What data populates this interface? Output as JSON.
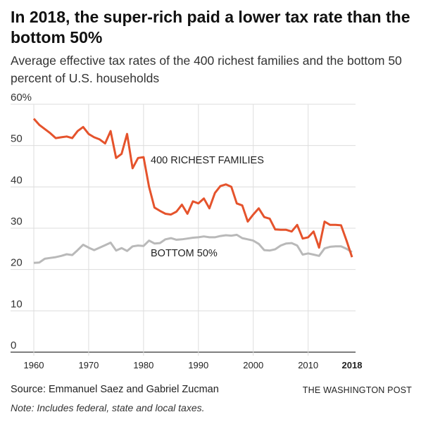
{
  "chart_data": {
    "type": "line",
    "title": "In 2018, the super-rich paid a lower tax rate than the bottom 50%",
    "subtitle": "Average effective tax rates of the 400 richest families and the bottom 50 percent of U.S. households",
    "xlabel": "",
    "ylabel": "",
    "xlim": [
      1960,
      2018
    ],
    "ylim": [
      0,
      60
    ],
    "x_ticks": [
      "1960",
      "1970",
      "1980",
      "1990",
      "2000",
      "2010",
      "2018"
    ],
    "y_ticks": [
      "0",
      "10",
      "20",
      "30",
      "40",
      "50",
      "60%"
    ],
    "grid": true,
    "x": [
      1960,
      1961,
      1962,
      1963,
      1964,
      1965,
      1966,
      1967,
      1968,
      1969,
      1970,
      1971,
      1972,
      1973,
      1974,
      1975,
      1976,
      1977,
      1978,
      1979,
      1980,
      1981,
      1982,
      1983,
      1984,
      1985,
      1986,
      1987,
      1988,
      1989,
      1990,
      1991,
      1992,
      1993,
      1994,
      1995,
      1996,
      1997,
      1998,
      1999,
      2000,
      2001,
      2002,
      2003,
      2004,
      2005,
      2006,
      2007,
      2008,
      2009,
      2010,
      2011,
      2012,
      2013,
      2014,
      2015,
      2016,
      2017,
      2018
    ],
    "series": [
      {
        "name": "400 RICHEST FAMILIES",
        "color": "#e5532c",
        "values": [
          56.5,
          55,
          54,
          53,
          51.8,
          52,
          52.2,
          51.8,
          53.5,
          54.5,
          52.8,
          52,
          51.5,
          50.5,
          53.5,
          47,
          48,
          52.8,
          44.5,
          47,
          47.2,
          40,
          35,
          34.2,
          33.5,
          33.3,
          34,
          35.7,
          33.5,
          36.5,
          36,
          37.2,
          34.8,
          38.5,
          40.2,
          40.6,
          40,
          36,
          35.5,
          31.6,
          33.3,
          34.8,
          32.7,
          32.3,
          29.7,
          29.6,
          29.6,
          29.2,
          30.8,
          27.5,
          27.8,
          29.2,
          25.3,
          31.6,
          30.8,
          30.8,
          30.7,
          27,
          23
        ]
      },
      {
        "name": "BOTTOM 50%",
        "color": "#b9b9b9",
        "values": [
          21.6,
          21.7,
          22.6,
          22.8,
          23,
          23.3,
          23.7,
          23.5,
          24.7,
          26,
          25.3,
          24.7,
          25.3,
          25.9,
          26.5,
          24.6,
          25.2,
          24.5,
          25.6,
          25.8,
          25.7,
          27,
          26.3,
          26.4,
          27.3,
          27.6,
          27.2,
          27.3,
          27.5,
          27.7,
          27.8,
          28,
          27.8,
          27.8,
          28.1,
          28.3,
          28.2,
          28.4,
          27.6,
          27.3,
          27,
          26.2,
          24.7,
          24.6,
          24.9,
          25.8,
          26.3,
          26.4,
          25.8,
          23.6,
          23.9,
          23.6,
          23.3,
          25.1,
          25.5,
          25.6,
          25.6,
          25,
          24.2
        ]
      }
    ],
    "legend": "inline labels"
  },
  "source": "Source: Emmanuel Saez and Gabriel Zucman",
  "publisher": "THE WASHINGTON POST",
  "note": "Note: Includes federal, state and local taxes."
}
